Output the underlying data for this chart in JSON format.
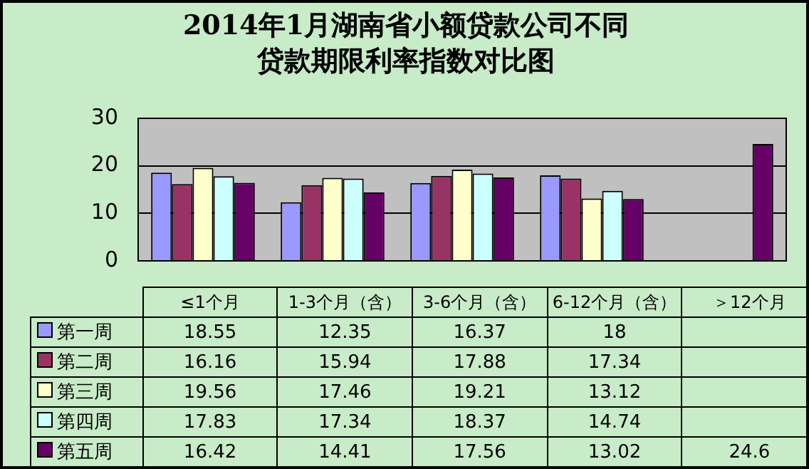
{
  "chart_data": {
    "type": "bar",
    "title": "2014年1月湖南省小额贷款公司不同贷款期限利率指数对比图",
    "categories": [
      "≤1个月",
      "1-3个月（含）",
      "3-6个月（含）",
      "6-12个月（含）",
      "＞12个月"
    ],
    "series": [
      {
        "name": "第一周",
        "color": "#9999ff",
        "values": [
          18.55,
          12.35,
          16.37,
          18,
          null
        ]
      },
      {
        "name": "第二周",
        "color": "#993366",
        "values": [
          16.16,
          15.94,
          17.88,
          17.34,
          null
        ]
      },
      {
        "name": "第三周",
        "color": "#ffffcc",
        "values": [
          19.56,
          17.46,
          19.21,
          13.12,
          null
        ]
      },
      {
        "name": "第四周",
        "color": "#ccffff",
        "values": [
          17.83,
          17.34,
          18.37,
          14.74,
          null
        ]
      },
      {
        "name": "第五周",
        "color": "#660066",
        "values": [
          16.42,
          14.41,
          17.56,
          13.02,
          24.6
        ]
      }
    ],
    "ylim": [
      0,
      30
    ],
    "yticks": [
      0,
      10,
      20,
      30
    ],
    "grid": "y",
    "legend": "bottom",
    "data_labels": true
  }
}
